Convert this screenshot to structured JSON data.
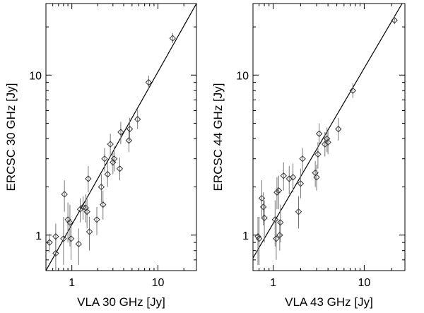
{
  "chart_data": [
    {
      "type": "scatter",
      "xlabel": "VLA 30 GHz [Jy]",
      "ylabel": "ERCSC 30 GHz [Jy]",
      "xscale": "log",
      "yscale": "log",
      "xlim": [
        0.5,
        28
      ],
      "ylim": [
        0.6,
        28
      ],
      "xticks": [
        {
          "value": 1,
          "label": "1"
        },
        {
          "value": 10,
          "label": "10"
        }
      ],
      "yticks": [
        {
          "value": 1,
          "label": "1"
        },
        {
          "value": 10,
          "label": "10"
        }
      ],
      "fit_line": {
        "x": [
          0.5,
          28
        ],
        "y": [
          0.6,
          28
        ]
      },
      "points": [
        {
          "x": 0.55,
          "y": 0.9,
          "yerr": [
            0.78,
            1.02
          ]
        },
        {
          "x": 0.65,
          "y": 0.77,
          "yerr": [
            0.6,
            0.95
          ]
        },
        {
          "x": 0.65,
          "y": 0.98,
          "yerr": [
            0.8,
            1.18
          ]
        },
        {
          "x": 0.8,
          "y": 0.95,
          "yerr": [
            0.65,
            1.3
          ]
        },
        {
          "x": 0.82,
          "y": 1.8,
          "yerr": [
            1.4,
            2.2
          ]
        },
        {
          "x": 0.9,
          "y": 1.25,
          "yerr": [
            0.9,
            1.6
          ]
        },
        {
          "x": 0.95,
          "y": 1.2,
          "yerr": [
            0.85,
            1.55
          ]
        },
        {
          "x": 0.98,
          "y": 0.95,
          "yerr": [
            0.7,
            1.2
          ]
        },
        {
          "x": 1.2,
          "y": 0.88,
          "yerr": [
            0.65,
            1.1
          ]
        },
        {
          "x": 1.25,
          "y": 1.45,
          "yerr": [
            1.2,
            1.7
          ]
        },
        {
          "x": 1.35,
          "y": 1.5,
          "yerr": [
            1.25,
            1.75
          ]
        },
        {
          "x": 1.45,
          "y": 1.48,
          "yerr": [
            1.2,
            1.8
          ]
        },
        {
          "x": 1.5,
          "y": 1.4,
          "yerr": [
            1.1,
            1.75
          ]
        },
        {
          "x": 1.55,
          "y": 2.25,
          "yerr": [
            1.85,
            2.7
          ]
        },
        {
          "x": 1.6,
          "y": 1.05,
          "yerr": [
            0.8,
            1.3
          ]
        },
        {
          "x": 1.95,
          "y": 1.25,
          "yerr": [
            1.0,
            1.5
          ]
        },
        {
          "x": 2.2,
          "y": 2.0,
          "yerr": [
            1.6,
            2.4
          ]
        },
        {
          "x": 2.3,
          "y": 1.55,
          "yerr": [
            1.25,
            1.9
          ]
        },
        {
          "x": 2.4,
          "y": 3.0,
          "yerr": [
            2.5,
            3.5
          ]
        },
        {
          "x": 2.6,
          "y": 2.4,
          "yerr": [
            2.0,
            2.85
          ]
        },
        {
          "x": 2.8,
          "y": 3.7,
          "yerr": [
            3.1,
            4.3
          ]
        },
        {
          "x": 3.0,
          "y": 2.85,
          "yerr": [
            2.4,
            3.3
          ]
        },
        {
          "x": 3.1,
          "y": 3.0,
          "yerr": [
            2.5,
            3.6
          ]
        },
        {
          "x": 3.6,
          "y": 2.6,
          "yerr": [
            2.2,
            3.05
          ]
        },
        {
          "x": 3.7,
          "y": 4.4,
          "yerr": [
            3.7,
            5.1
          ]
        },
        {
          "x": 4.6,
          "y": 3.9,
          "yerr": [
            3.3,
            4.6
          ]
        },
        {
          "x": 4.7,
          "y": 4.6,
          "yerr": [
            3.9,
            5.4
          ]
        },
        {
          "x": 5.8,
          "y": 5.3,
          "yerr": [
            4.6,
            6.1
          ]
        },
        {
          "x": 7.8,
          "y": 9.0,
          "yerr": [
            8.2,
            9.9
          ]
        },
        {
          "x": 14.8,
          "y": 17.0,
          "yerr": [
            15.8,
            18.3
          ]
        }
      ]
    },
    {
      "type": "scatter",
      "xlabel": "VLA 43 GHz [Jy]",
      "ylabel": "ERCSC 44 GHz [Jy]",
      "xscale": "log",
      "yscale": "log",
      "xlim": [
        0.6,
        28
      ],
      "ylim": [
        0.6,
        28
      ],
      "xticks": [
        {
          "value": 1,
          "label": "1"
        },
        {
          "value": 10,
          "label": "10"
        }
      ],
      "yticks": [
        {
          "value": 1,
          "label": "1"
        },
        {
          "value": 10,
          "label": "10"
        }
      ],
      "fit_line": {
        "x": [
          0.6,
          28
        ],
        "y": [
          0.72,
          30
        ]
      },
      "points": [
        {
          "x": 0.68,
          "y": 0.98,
          "yerr": [
            0.65,
            1.3
          ]
        },
        {
          "x": 0.7,
          "y": 0.95,
          "yerr": [
            0.65,
            1.3
          ]
        },
        {
          "x": 0.75,
          "y": 1.7,
          "yerr": [
            1.3,
            2.2
          ]
        },
        {
          "x": 0.78,
          "y": 1.5,
          "yerr": [
            1.15,
            1.85
          ]
        },
        {
          "x": 0.8,
          "y": 1.28,
          "yerr": [
            0.9,
            1.65
          ]
        },
        {
          "x": 1.05,
          "y": 1.25,
          "yerr": [
            0.85,
            1.65
          ]
        },
        {
          "x": 1.08,
          "y": 0.95,
          "yerr": [
            0.7,
            1.25
          ]
        },
        {
          "x": 1.1,
          "y": 1.85,
          "yerr": [
            1.45,
            2.3
          ]
        },
        {
          "x": 1.15,
          "y": 1.9,
          "yerr": [
            1.45,
            2.35
          ]
        },
        {
          "x": 1.18,
          "y": 1.0,
          "yerr": [
            0.8,
            1.25
          ]
        },
        {
          "x": 1.2,
          "y": 1.2,
          "yerr": [
            0.9,
            1.55
          ]
        },
        {
          "x": 1.3,
          "y": 2.35,
          "yerr": [
            1.9,
            2.85
          ]
        },
        {
          "x": 1.5,
          "y": 2.25,
          "yerr": [
            1.8,
            2.7
          ]
        },
        {
          "x": 1.65,
          "y": 2.3,
          "yerr": [
            1.85,
            2.8
          ]
        },
        {
          "x": 1.9,
          "y": 1.4,
          "yerr": [
            1.1,
            1.75
          ]
        },
        {
          "x": 2.0,
          "y": 2.1,
          "yerr": [
            1.7,
            2.6
          ]
        },
        {
          "x": 2.1,
          "y": 3.0,
          "yerr": [
            2.5,
            3.5
          ]
        },
        {
          "x": 2.9,
          "y": 2.45,
          "yerr": [
            2.0,
            2.9
          ]
        },
        {
          "x": 3.0,
          "y": 2.3,
          "yerr": [
            1.9,
            2.75
          ]
        },
        {
          "x": 3.1,
          "y": 3.2,
          "yerr": [
            2.6,
            3.8
          ]
        },
        {
          "x": 3.2,
          "y": 4.3,
          "yerr": [
            3.6,
            5.0
          ]
        },
        {
          "x": 3.7,
          "y": 3.7,
          "yerr": [
            3.1,
            4.4
          ]
        },
        {
          "x": 3.9,
          "y": 4.0,
          "yerr": [
            3.3,
            4.7
          ]
        },
        {
          "x": 4.0,
          "y": 3.8,
          "yerr": [
            3.2,
            4.5
          ]
        },
        {
          "x": 5.2,
          "y": 4.6,
          "yerr": [
            3.9,
            5.4
          ]
        },
        {
          "x": 7.5,
          "y": 8.0,
          "yerr": [
            7.2,
            8.9
          ]
        },
        {
          "x": 21.5,
          "y": 22.0,
          "yerr": [
            20.8,
            23.3
          ]
        }
      ]
    }
  ]
}
